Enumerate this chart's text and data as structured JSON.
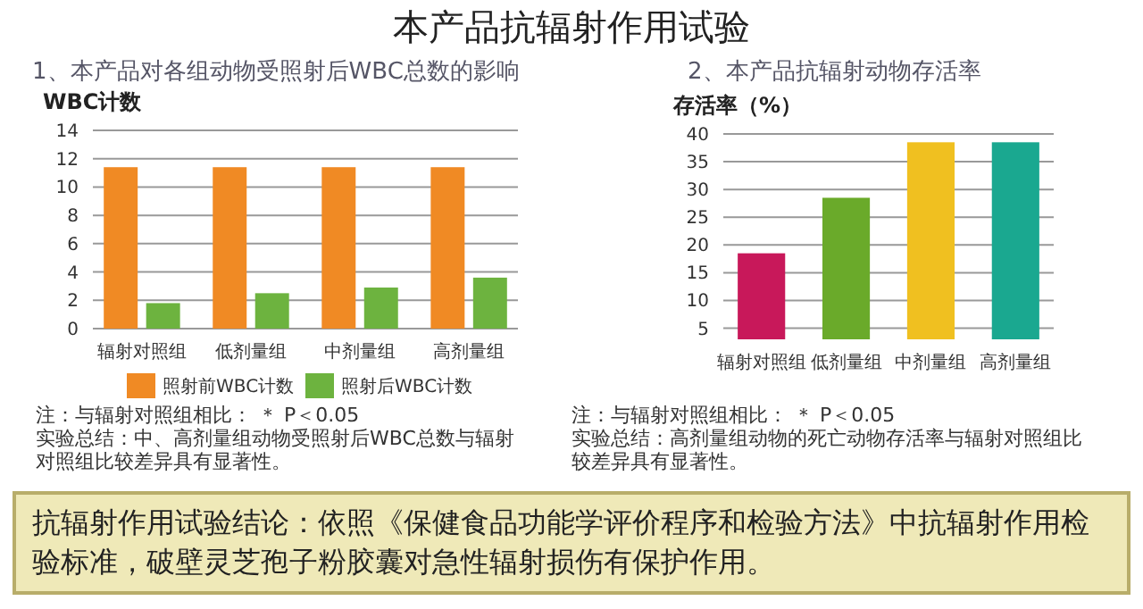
{
  "chart_data": [
    {
      "type": "other",
      "title": "本产品抗辐射作用试验",
      "annotations": [
        "抗辐射作用试验结论：依照《保健食品功能学评价程序和检验方法》中抗辐射作用检验标准，破壁灵芝孢子粉胶囊对急性辐射损伤有保护作用。"
      ]
    },
    {
      "type": "bar",
      "title": "1、本产品对各组动物受照射后WBC总数的影响",
      "ylabel": "WBC计数",
      "categories": [
        "辐射对照组",
        "低剂量组",
        "中剂量组",
        "高剂量组"
      ],
      "series": [
        {
          "name": "照射前WBC计数",
          "color": "#f08a24",
          "values": [
            11.4,
            11.4,
            11.4,
            11.4
          ]
        },
        {
          "name": "照射后WBC计数",
          "color": "#6db33f",
          "values": [
            1.8,
            2.5,
            2.9,
            3.6
          ]
        }
      ],
      "ylim": [
        0,
        14
      ],
      "yticks": [
        0,
        2,
        4,
        6,
        8,
        10,
        12,
        14
      ],
      "grid": "y",
      "legend": "bottom",
      "annotations": [
        "注：与辐射对照组相比：  ＊  P＜0.05",
        "实验总结：中、高剂量组动物受照射后WBC总数与辐射对照组比较差异具有显著性。"
      ]
    },
    {
      "type": "bar",
      "title": "2、本产品抗辐射动物存活率",
      "ylabel": "存活率（%）",
      "categories": [
        "辐射对照组",
        "低剂量组",
        "中剂量组",
        "高剂量组"
      ],
      "values": [
        18.5,
        28.5,
        38.5,
        38.5
      ],
      "colors": [
        "#c8185a",
        "#6aaa2a",
        "#f0c020",
        "#1aa890"
      ],
      "ylim": [
        3,
        40
      ],
      "yticks": [
        5,
        10,
        15,
        20,
        25,
        30,
        35,
        40
      ],
      "grid": "y",
      "annotations": [
        "注：与辐射对照组相比：  ＊  P＜0.05",
        "实验总结：高剂量组动物的死亡动物存活率与辐射对照组比较差异具有显著性。"
      ]
    }
  ]
}
